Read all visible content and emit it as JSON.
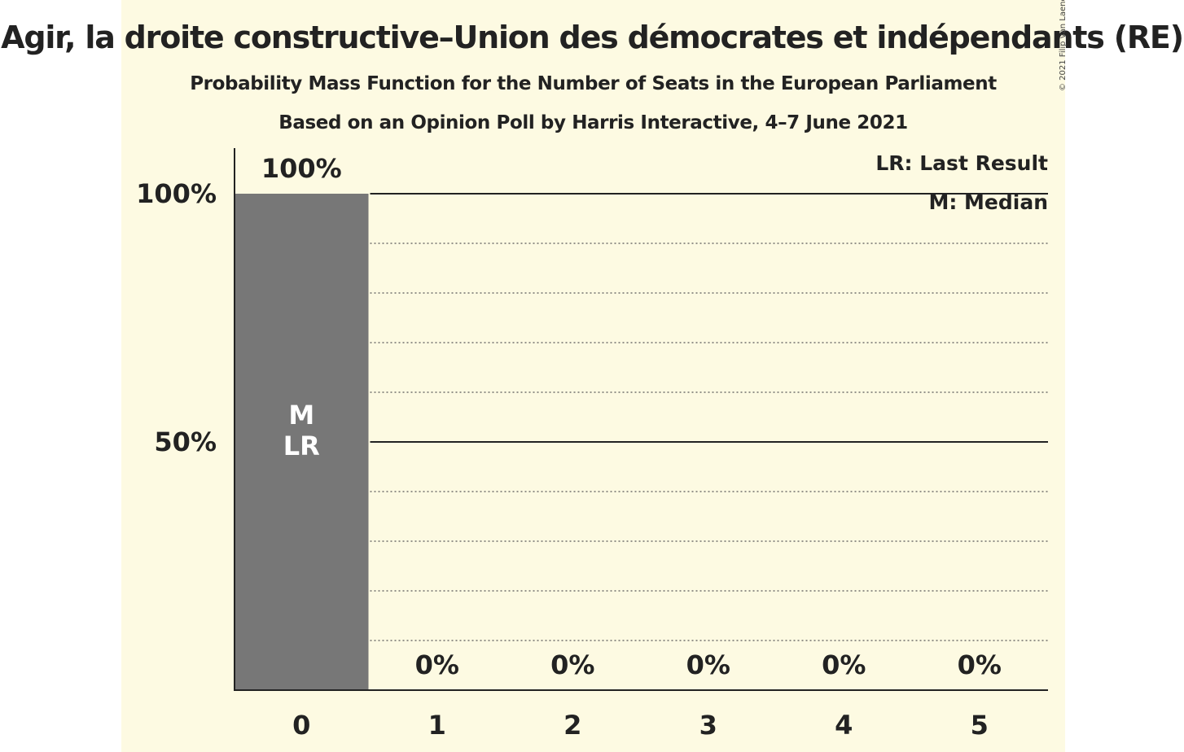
{
  "header": {
    "title": "Agir, la droite constructive–Union des démocrates et indépendants (RE)",
    "subtitle": "Probability Mass Function for the Number of Seats in the European Parliament",
    "source": "Based on an Opinion Poll by Harris Interactive, 4–7 June 2021",
    "copyright": "© 2021 Filip van Laenen"
  },
  "legend": {
    "last_result": "LR: Last Result",
    "median": "M: Median"
  },
  "colors": {
    "background": "#fdfae2",
    "bar": "#777777",
    "axis": "#222222",
    "bar_label": "#ffffff"
  },
  "chart_data": {
    "type": "bar",
    "categories": [
      "0",
      "1",
      "2",
      "3",
      "4",
      "5"
    ],
    "values": [
      100,
      0,
      0,
      0,
      0,
      0
    ],
    "value_labels": [
      "100%",
      "0%",
      "0%",
      "0%",
      "0%",
      "0%"
    ],
    "y_ticks": [
      {
        "value": 100,
        "label": "100%"
      },
      {
        "value": 50,
        "label": "50%"
      }
    ],
    "ylim": [
      0,
      100
    ],
    "minor_grid_step": 10,
    "median_index": 0,
    "last_result_index": 0,
    "markers": {
      "median": "M",
      "last_result": "LR"
    },
    "legend_position": "top-right"
  }
}
